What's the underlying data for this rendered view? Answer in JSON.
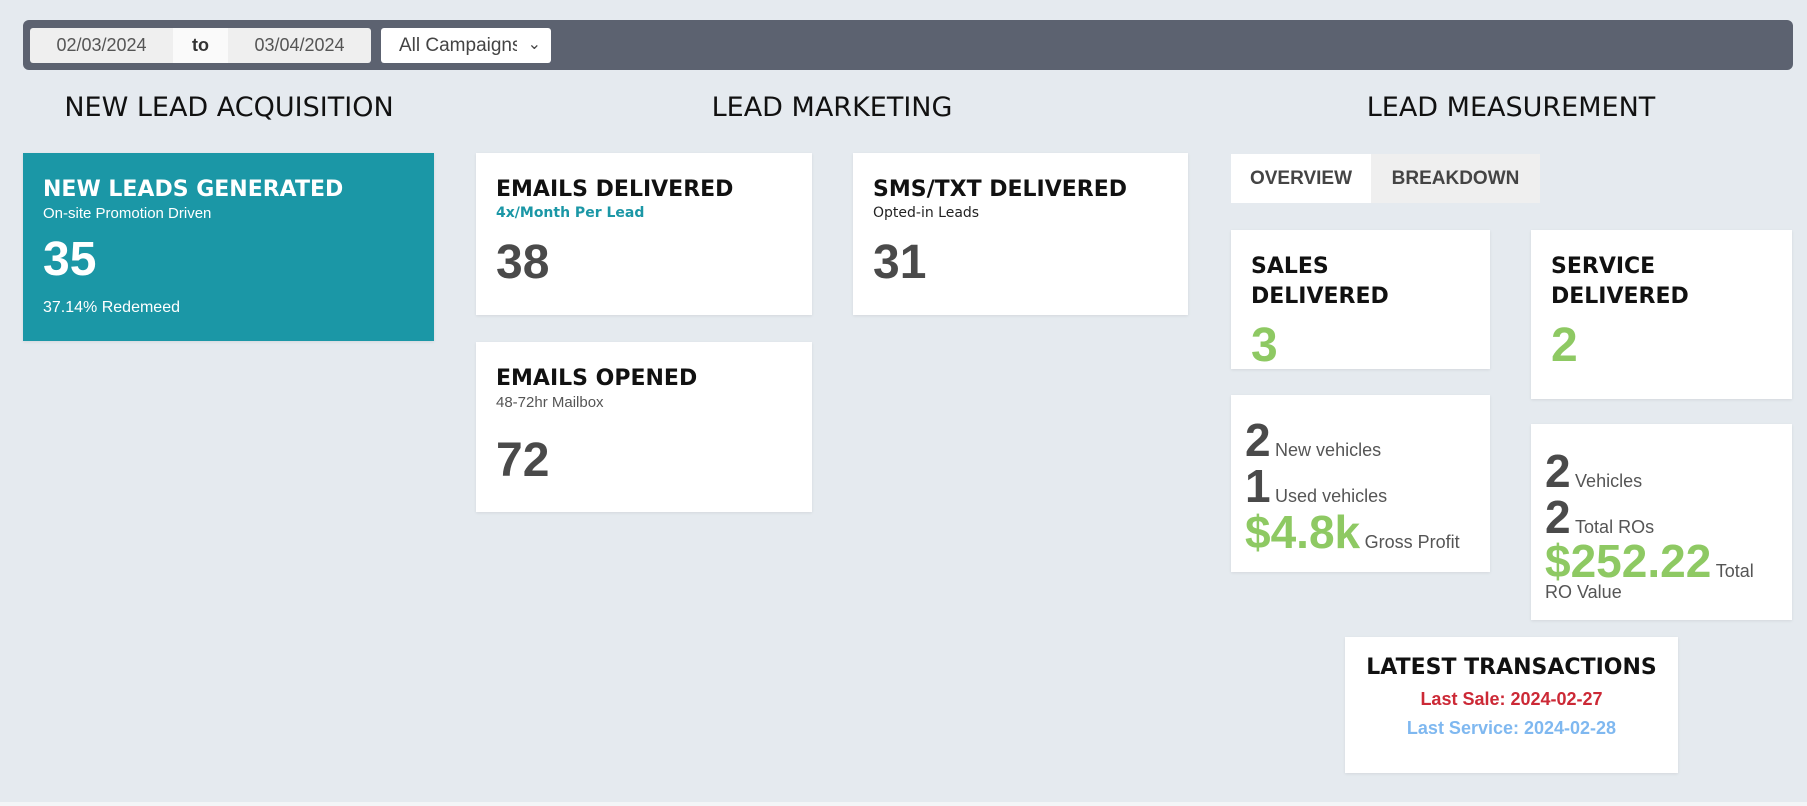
{
  "filters": {
    "date_from": "02/03/2024",
    "to_label": "to",
    "date_to": "03/04/2024",
    "campaign": "All Campaigns"
  },
  "sections": {
    "acquisition": "NEW LEAD ACQUISITION",
    "marketing": "LEAD MARKETING",
    "measurement": "LEAD MEASUREMENT"
  },
  "new_leads": {
    "title": "NEW LEADS GENERATED",
    "subtitle": "On-site Promotion Driven",
    "value": "35",
    "redeemed": "37.14% Redemeed"
  },
  "emails_delivered": {
    "title": "EMAILS DELIVERED",
    "subtitle": "4x/Month Per Lead",
    "value": "38"
  },
  "sms_delivered": {
    "title": "SMS/TXT DELIVERED",
    "subtitle": "Opted-in Leads",
    "value": "31"
  },
  "emails_opened": {
    "title": "EMAILS OPENED",
    "subtitle": "48-72hr Mailbox",
    "value": "72"
  },
  "tabs": {
    "overview": "OVERVIEW",
    "breakdown": "BREAKDOWN"
  },
  "sales": {
    "title": "SALES DELIVERED",
    "value": "3",
    "new_count": "2",
    "new_label": "New vehicles",
    "used_count": "1",
    "used_label": "Used vehicles",
    "gross": "$4.8k",
    "gross_label": "Gross Profit"
  },
  "service": {
    "title_line1": "SERVICE",
    "title_line2": "DELIVERED",
    "value": "2",
    "vehicles_count": "2",
    "vehicles_label": "Vehicles",
    "ros_count": "2",
    "ros_label": "Total ROs",
    "ro_value": "$252.22",
    "ro_value_label": "Total RO Value"
  },
  "latest": {
    "title": "LATEST TRANSACTIONS",
    "last_sale": "Last Sale: 2024-02-27",
    "last_service": "Last Service: 2024-02-28"
  },
  "colors": {
    "teal": "#1b97a6",
    "green": "#8ec963",
    "sale_red": "#cc2936",
    "service_blue": "#7fb8f0"
  }
}
